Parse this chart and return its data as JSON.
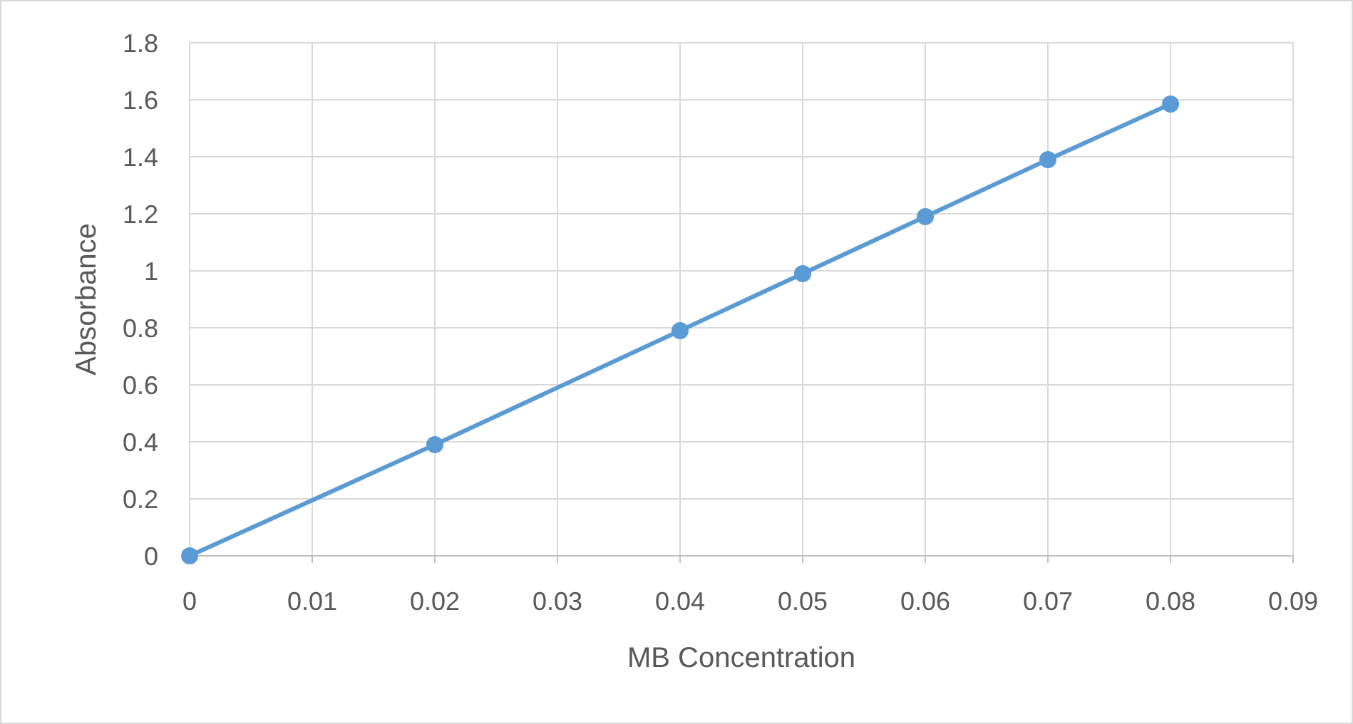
{
  "chart_data": {
    "type": "line",
    "xlabel": "MB Concentration",
    "ylabel": "Absorbance",
    "x": [
      0,
      0.02,
      0.04,
      0.05,
      0.06,
      0.07,
      0.08
    ],
    "series": [
      {
        "color": "#5b9bd5",
        "values": [
          0,
          0.39,
          0.79,
          0.99,
          1.19,
          1.39,
          1.585
        ]
      }
    ],
    "xlim": [
      0,
      0.09
    ],
    "xticks": [
      0,
      0.01,
      0.02,
      0.03,
      0.04,
      0.05,
      0.06,
      0.07,
      0.08,
      0.09
    ],
    "ylim": [
      0,
      1.8
    ],
    "yticks": [
      0,
      0.2,
      0.4,
      0.6,
      0.8,
      1,
      1.2,
      1.4,
      1.6,
      1.8
    ],
    "grid": true,
    "marker": "circle",
    "line_style": "solid"
  }
}
